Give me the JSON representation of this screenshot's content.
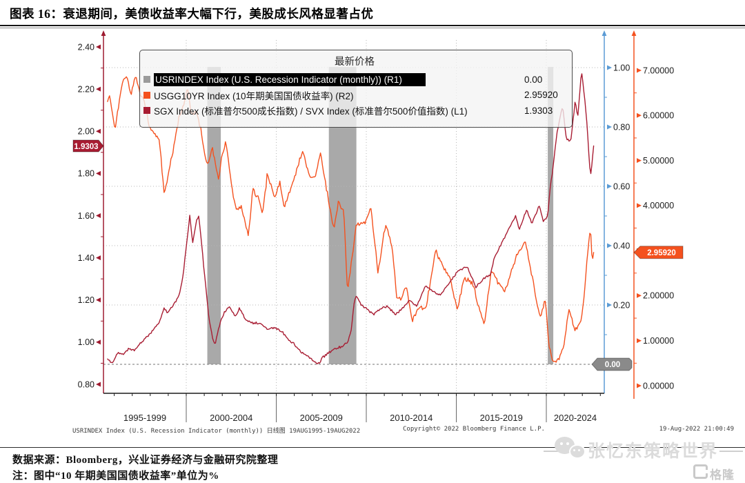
{
  "title": {
    "text": "图表 16：衰退期间，美债收益率大幅下行，美股成长风格显著占优"
  },
  "legend": {
    "title": "最新价格",
    "items": [
      {
        "label": "USRINDEX Index (U.S. Recession Indicator (monthly))  (R1)",
        "value": "0.00",
        "color": "#9b9b9b",
        "highlighted": true
      },
      {
        "label": "USGG10YR Index (10年期美国国债收益率)  (R2)",
        "value": "2.95920",
        "color": "#f4511e",
        "highlighted": false
      },
      {
        "label": "SGX Index (标准普尔500成长指数) / SVX Index (标准普尔500价值指数)  (L1)",
        "value": "1.9303",
        "color": "#a81c32",
        "highlighted": false
      }
    ]
  },
  "captions": {
    "left": "USRINDEX Index (U.S. Recession Indicator (monthly))  日线图 19AUG1995-19AUG2022",
    "center": "Copyright© 2022 Bloomberg Finance L.P.",
    "right": "19-Aug-2022 21:00:49"
  },
  "footer": {
    "source": "数据来源：Bloomberg，兴业证券经济与金融研究院整理",
    "note": "注：图中“10 年期美国国债收益率”单位为%"
  },
  "watermark": {
    "text": "张忆东策略世界",
    "logo_text": "格隆汇"
  },
  "chart_data": {
    "type": "line",
    "title": "最新价格",
    "x_range": [
      1995.63,
      2022.63
    ],
    "x_axis": {
      "labels": [
        "1995-1999",
        "2000-2004",
        "2005-2009",
        "2010-2014",
        "2015-2019",
        "2020-2024"
      ],
      "divider_years": [
        2000,
        2005,
        2010,
        2015,
        2020
      ]
    },
    "axis_left": {
      "id": "L1",
      "ticks": [
        "2.40",
        "2.20",
        "2.00",
        "1.80",
        "1.60",
        "1.40",
        "1.20",
        "1.00",
        "0.80"
      ],
      "color": "#9e1b30",
      "ylim": [
        0.8,
        2.4
      ]
    },
    "axis_r1": {
      "id": "R1",
      "ticks": [
        "1.00",
        "0.80",
        "0.60",
        "0.40",
        "0.20"
      ],
      "color": "#5b9bd5",
      "ylim": [
        0.0,
        1.0
      ]
    },
    "axis_r2": {
      "id": "R2",
      "ticks": [
        "7.00000",
        "6.00000",
        "5.00000",
        "4.00000",
        "3.00000",
        "2.00000",
        "1.00000",
        "0.00000"
      ],
      "color": "#f4511e",
      "ylim": [
        0.0,
        7.0
      ]
    },
    "grid": true,
    "legend_position": "top",
    "series": [
      {
        "name": "USRINDEX Index (U.S. Recession Indicator (monthly))",
        "axis": "R1",
        "style": "recession-bars",
        "color": "#a9a9a9",
        "current_value": 0.0,
        "baseline": 0,
        "periods": [
          [
            2001.17,
            2001.92
          ],
          [
            2007.92,
            2009.45
          ],
          [
            2020.08,
            2020.33
          ]
        ]
      },
      {
        "name": "USGG10YR Index (10年期美国国债收益率)",
        "axis": "R2",
        "style": "line",
        "color": "#f4511e",
        "points": [
          [
            1995.63,
            6.3
          ],
          [
            1995.75,
            6.48
          ],
          [
            1995.9,
            6.05
          ],
          [
            1996.05,
            5.65
          ],
          [
            1996.2,
            6.1
          ],
          [
            1996.45,
            6.75
          ],
          [
            1996.7,
            6.9
          ],
          [
            1996.9,
            6.45
          ],
          [
            1997.2,
            6.88
          ],
          [
            1997.45,
            6.45
          ],
          [
            1997.7,
            6.25
          ],
          [
            1997.95,
            5.75
          ],
          [
            1998.2,
            5.62
          ],
          [
            1998.5,
            5.45
          ],
          [
            1998.78,
            4.25
          ],
          [
            1999.0,
            4.7
          ],
          [
            1999.3,
            5.3
          ],
          [
            1999.6,
            5.95
          ],
          [
            1999.9,
            6.3
          ],
          [
            2000.05,
            6.65
          ],
          [
            2000.3,
            6.0
          ],
          [
            2000.55,
            6.1
          ],
          [
            2000.8,
            5.7
          ],
          [
            2001.0,
            5.15
          ],
          [
            2001.2,
            4.9
          ],
          [
            2001.45,
            5.3
          ],
          [
            2001.8,
            4.55
          ],
          [
            2001.95,
            5.05
          ],
          [
            2002.2,
            5.4
          ],
          [
            2002.6,
            4.2
          ],
          [
            2002.8,
            3.9
          ],
          [
            2003.05,
            4.0
          ],
          [
            2003.45,
            3.3
          ],
          [
            2003.7,
            4.4
          ],
          [
            2004.0,
            4.15
          ],
          [
            2004.25,
            3.8
          ],
          [
            2004.5,
            4.7
          ],
          [
            2004.9,
            4.2
          ],
          [
            2005.2,
            4.5
          ],
          [
            2005.45,
            3.95
          ],
          [
            2005.9,
            4.5
          ],
          [
            2006.45,
            5.2
          ],
          [
            2006.9,
            4.6
          ],
          [
            2007.2,
            4.68
          ],
          [
            2007.45,
            5.2
          ],
          [
            2007.9,
            4.1
          ],
          [
            2008.2,
            3.45
          ],
          [
            2008.45,
            4.1
          ],
          [
            2008.75,
            3.85
          ],
          [
            2008.95,
            2.1
          ],
          [
            2009.2,
            2.8
          ],
          [
            2009.45,
            3.6
          ],
          [
            2009.9,
            3.6
          ],
          [
            2010.25,
            3.95
          ],
          [
            2010.65,
            2.5
          ],
          [
            2010.95,
            3.3
          ],
          [
            2011.1,
            3.6
          ],
          [
            2011.45,
            3.05
          ],
          [
            2011.7,
            1.95
          ],
          [
            2011.95,
            1.9
          ],
          [
            2012.2,
            2.25
          ],
          [
            2012.55,
            1.45
          ],
          [
            2012.95,
            1.75
          ],
          [
            2013.3,
            1.7
          ],
          [
            2013.85,
            3.0
          ],
          [
            2014.2,
            2.7
          ],
          [
            2014.6,
            2.45
          ],
          [
            2015.05,
            1.68
          ],
          [
            2015.45,
            2.4
          ],
          [
            2015.95,
            2.25
          ],
          [
            2016.2,
            1.8
          ],
          [
            2016.55,
            1.37
          ],
          [
            2016.95,
            2.55
          ],
          [
            2017.3,
            2.3
          ],
          [
            2017.7,
            2.1
          ],
          [
            2017.95,
            2.4
          ],
          [
            2018.3,
            2.85
          ],
          [
            2018.85,
            3.22
          ],
          [
            2019.1,
            2.65
          ],
          [
            2019.65,
            1.5
          ],
          [
            2019.95,
            1.9
          ],
          [
            2020.15,
            0.9
          ],
          [
            2020.3,
            0.6
          ],
          [
            2020.6,
            0.55
          ],
          [
            2020.85,
            0.72
          ],
          [
            2021.0,
            0.95
          ],
          [
            2021.25,
            1.72
          ],
          [
            2021.6,
            1.22
          ],
          [
            2021.8,
            1.35
          ],
          [
            2021.95,
            1.5
          ],
          [
            2022.05,
            1.78
          ],
          [
            2022.25,
            2.75
          ],
          [
            2022.45,
            3.48
          ],
          [
            2022.55,
            2.78
          ],
          [
            2022.63,
            2.96
          ]
        ]
      },
      {
        "name": "SGX Index (标准普尔500成长指数) / SVX Index (标准普尔500价值指数)",
        "axis": "L1",
        "style": "line",
        "color": "#a81c32",
        "points": [
          [
            1995.63,
            0.92
          ],
          [
            1995.9,
            0.9
          ],
          [
            1996.2,
            0.95
          ],
          [
            1996.5,
            0.94
          ],
          [
            1996.8,
            0.97
          ],
          [
            1997.1,
            0.96
          ],
          [
            1997.5,
            1.0
          ],
          [
            1997.9,
            1.03
          ],
          [
            1998.2,
            1.06
          ],
          [
            1998.5,
            1.09
          ],
          [
            1998.75,
            1.16
          ],
          [
            1999.0,
            1.14
          ],
          [
            1999.3,
            1.18
          ],
          [
            1999.6,
            1.22
          ],
          [
            1999.8,
            1.3
          ],
          [
            2000.0,
            1.45
          ],
          [
            2000.2,
            1.6
          ],
          [
            2000.35,
            1.47
          ],
          [
            2000.55,
            1.57
          ],
          [
            2000.7,
            1.6
          ],
          [
            2000.9,
            1.42
          ],
          [
            2001.1,
            1.25
          ],
          [
            2001.25,
            1.12
          ],
          [
            2001.45,
            1.02
          ],
          [
            2001.6,
            0.99
          ],
          [
            2001.75,
            1.05
          ],
          [
            2001.92,
            1.1
          ],
          [
            2002.1,
            1.14
          ],
          [
            2002.4,
            1.17
          ],
          [
            2002.7,
            1.12
          ],
          [
            2002.95,
            1.16
          ],
          [
            2003.3,
            1.11
          ],
          [
            2003.7,
            1.09
          ],
          [
            2004.1,
            1.09
          ],
          [
            2004.5,
            1.06
          ],
          [
            2004.9,
            1.07
          ],
          [
            2005.3,
            1.05
          ],
          [
            2005.7,
            1.01
          ],
          [
            2006.0,
            0.99
          ],
          [
            2006.4,
            0.95
          ],
          [
            2006.8,
            0.93
          ],
          [
            2007.1,
            0.91
          ],
          [
            2007.35,
            0.9
          ],
          [
            2007.6,
            0.93
          ],
          [
            2007.92,
            0.95
          ],
          [
            2008.3,
            0.97
          ],
          [
            2008.7,
            0.98
          ],
          [
            2008.95,
            1.0
          ],
          [
            2009.15,
            1.05
          ],
          [
            2009.35,
            1.2
          ],
          [
            2009.45,
            1.22
          ],
          [
            2009.7,
            1.18
          ],
          [
            2010.0,
            1.16
          ],
          [
            2010.4,
            1.13
          ],
          [
            2010.8,
            1.16
          ],
          [
            2011.2,
            1.17
          ],
          [
            2011.6,
            1.13
          ],
          [
            2012.0,
            1.16
          ],
          [
            2012.4,
            1.2
          ],
          [
            2012.8,
            1.17
          ],
          [
            2013.3,
            1.27
          ],
          [
            2013.7,
            1.24
          ],
          [
            2014.1,
            1.22
          ],
          [
            2014.6,
            1.28
          ],
          [
            2015.0,
            1.33
          ],
          [
            2015.6,
            1.36
          ],
          [
            2016.1,
            1.26
          ],
          [
            2016.5,
            1.3
          ],
          [
            2016.9,
            1.32
          ],
          [
            2017.1,
            1.4
          ],
          [
            2017.7,
            1.5
          ],
          [
            2018.3,
            1.6
          ],
          [
            2018.5,
            1.53
          ],
          [
            2018.9,
            1.63
          ],
          [
            2019.2,
            1.56
          ],
          [
            2019.6,
            1.65
          ],
          [
            2019.85,
            1.57
          ],
          [
            2020.08,
            1.6
          ],
          [
            2020.2,
            1.72
          ],
          [
            2020.33,
            1.8
          ],
          [
            2020.6,
            2.0
          ],
          [
            2020.9,
            2.12
          ],
          [
            2021.1,
            1.97
          ],
          [
            2021.35,
            1.95
          ],
          [
            2021.6,
            2.14
          ],
          [
            2021.75,
            2.07
          ],
          [
            2021.95,
            2.29
          ],
          [
            2022.1,
            2.18
          ],
          [
            2022.25,
            2.04
          ],
          [
            2022.45,
            1.78
          ],
          [
            2022.55,
            1.86
          ],
          [
            2022.63,
            1.9303
          ]
        ]
      }
    ],
    "tags": [
      {
        "text": "1.9303",
        "axis": "L1",
        "value": 1.9303,
        "color": "#a81c32",
        "side": "left"
      },
      {
        "text": "2.95920",
        "axis": "R2",
        "value": 2.9592,
        "color": "#f4511e",
        "side": "right"
      },
      {
        "text": "0.00",
        "axis": "R1",
        "value": 0.0,
        "color": "#8a8a8a",
        "side": "right-inner"
      }
    ]
  }
}
